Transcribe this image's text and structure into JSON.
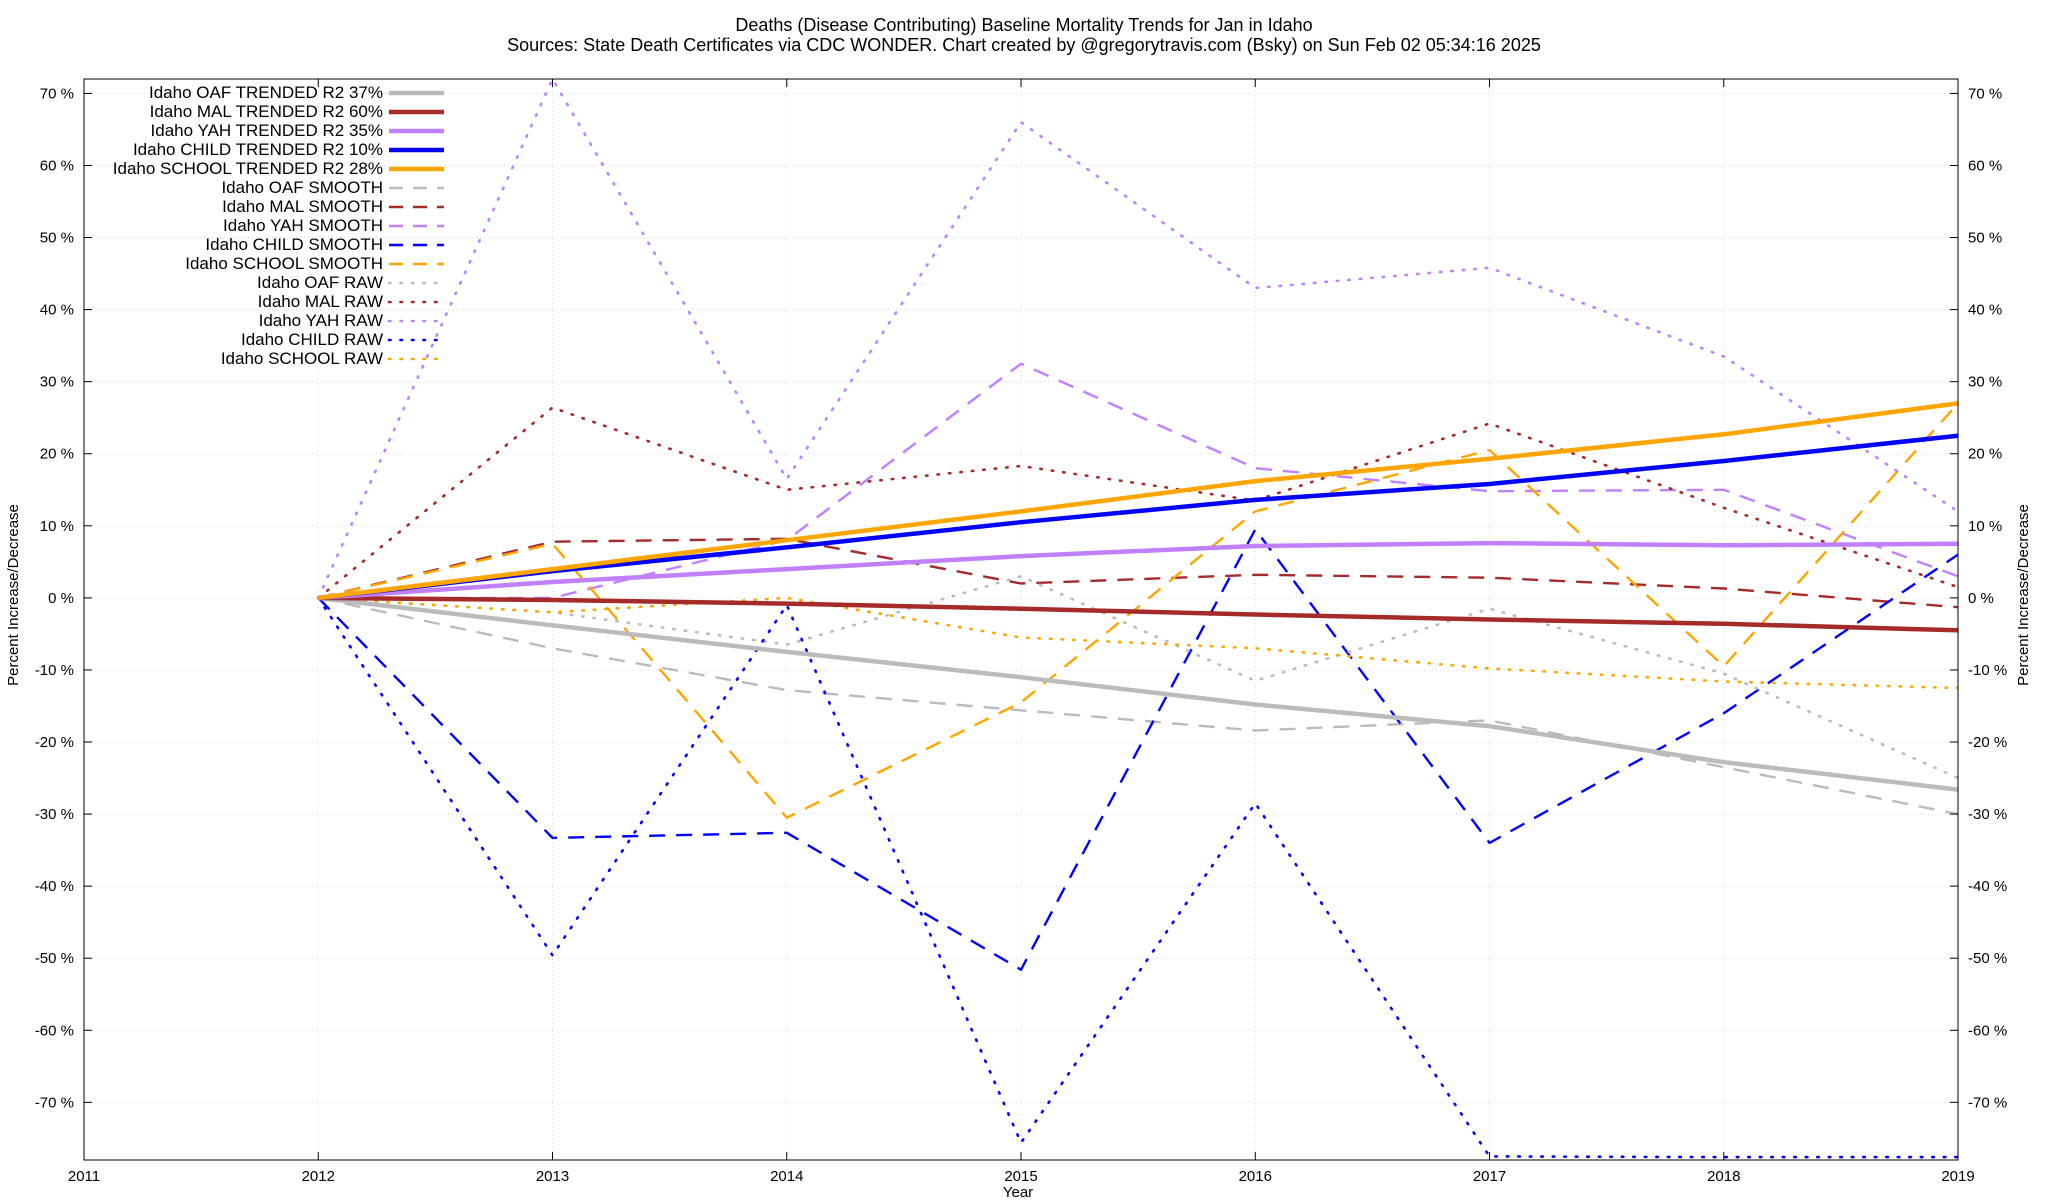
{
  "header": {
    "title_line1": "Deaths (Disease Contributing)  Baseline Mortality Trends for Jan in Idaho",
    "title_line2": "Sources: State Death Certificates via CDC WONDER.              Chart created by @gregorytravis.com (Bsky) on Sun Feb 02 05:34:16 2025"
  },
  "chart_data": {
    "type": "line",
    "xlabel": "Year",
    "ylabel": "Percent Increase/Decrease",
    "y2label": "Percent Increase/Decrease",
    "xlim": [
      2011,
      2019
    ],
    "ylim": [
      -78,
      72
    ],
    "x_ticks": [
      2011,
      2012,
      2013,
      2014,
      2015,
      2016,
      2017,
      2018,
      2019
    ],
    "y_ticks": [
      70,
      60,
      50,
      40,
      30,
      20,
      10,
      0,
      -10,
      -20,
      -30,
      -40,
      -50,
      -60,
      -70
    ],
    "y_tick_suffix": " %",
    "grid": true,
    "legend_position": "top-left",
    "x": [
      2012,
      2013,
      2014,
      2015,
      2016,
      2017,
      2018,
      2019
    ],
    "series": [
      {
        "name": "Idaho OAF TRENDED R2  37%",
        "color": "#bbbbbb",
        "style": "solid",
        "values": [
          0,
          -3.8,
          -7.5,
          -11,
          -14.8,
          -17.8,
          -22.8,
          -26.6
        ]
      },
      {
        "name": "Idaho MAL TRENDED R2  60%",
        "color": "#a52a2a",
        "style": "solid",
        "values": [
          0,
          -0.3,
          -0.8,
          -1.5,
          -2.3,
          -3,
          -3.6,
          -4.5
        ]
      },
      {
        "name": "Idaho YAH TRENDED R2  35%",
        "color": "#c080ff",
        "style": "solid",
        "values": [
          0,
          2.2,
          4,
          5.8,
          7.2,
          7.6,
          7.3,
          7.5
        ]
      },
      {
        "name": "Idaho CHILD TRENDED R2  10%",
        "color": "#0000ff",
        "style": "solid",
        "values": [
          0,
          3.7,
          7,
          10.5,
          13.6,
          15.8,
          19,
          22.5
        ]
      },
      {
        "name": "Idaho SCHOOL TRENDED R2  28%",
        "color": "#ffa500",
        "style": "solid",
        "values": [
          0,
          4,
          8,
          12,
          16.2,
          19.3,
          22.7,
          27
        ]
      },
      {
        "name": "Idaho OAF SMOOTH",
        "color": "#bbbbbb",
        "style": "dashed",
        "values": [
          0,
          -7,
          -12.8,
          -15.6,
          -18.4,
          -17,
          -23.5,
          -30
        ]
      },
      {
        "name": "Idaho MAL SMOOTH",
        "color": "#a52a2a",
        "style": "dashed",
        "values": [
          0,
          7.8,
          8.2,
          2,
          3.2,
          2.8,
          1.3,
          -1.3
        ]
      },
      {
        "name": "Idaho YAH SMOOTH",
        "color": "#c080ff",
        "style": "dashed",
        "values": [
          0,
          0,
          8,
          32.5,
          18,
          14.8,
          15,
          3
        ]
      },
      {
        "name": "Idaho CHILD SMOOTH",
        "color": "#0000ff",
        "style": "dashed",
        "values": [
          0,
          -33.3,
          -32.6,
          -51.6,
          9.5,
          -34,
          -16,
          6
        ]
      },
      {
        "name": "Idaho SCHOOL SMOOTH",
        "color": "#ffa500",
        "style": "dashed",
        "values": [
          0,
          7.5,
          -30.5,
          -14.5,
          12,
          20.5,
          -9.5,
          27
        ]
      },
      {
        "name": "Idaho OAF RAW",
        "color": "#bbbbbb",
        "style": "dotted",
        "values": [
          0,
          -2,
          -6.5,
          3,
          -11.5,
          -1.5,
          -10.5,
          -25
        ]
      },
      {
        "name": "Idaho MAL RAW",
        "color": "#a52a2a",
        "style": "dotted",
        "values": [
          0,
          26.4,
          15,
          18.3,
          13.5,
          24.2,
          12.5,
          1.5
        ]
      },
      {
        "name": "Idaho YAH RAW",
        "color": "#c080ff",
        "style": "dotted",
        "values": [
          0,
          72,
          16.5,
          66,
          43,
          45.8,
          33.5,
          12
        ]
      },
      {
        "name": "Idaho CHILD RAW",
        "color": "#0000ff",
        "style": "dotted",
        "values": [
          0,
          -49.6,
          -1,
          -75.6,
          -28.5,
          -77.5,
          -77.6,
          -77.6
        ]
      },
      {
        "name": "Idaho SCHOOL RAW",
        "color": "#ffa500",
        "style": "dotted",
        "values": [
          0,
          -2,
          0,
          -5.5,
          -7,
          -9.8,
          -11.6,
          -12.5
        ]
      }
    ]
  }
}
